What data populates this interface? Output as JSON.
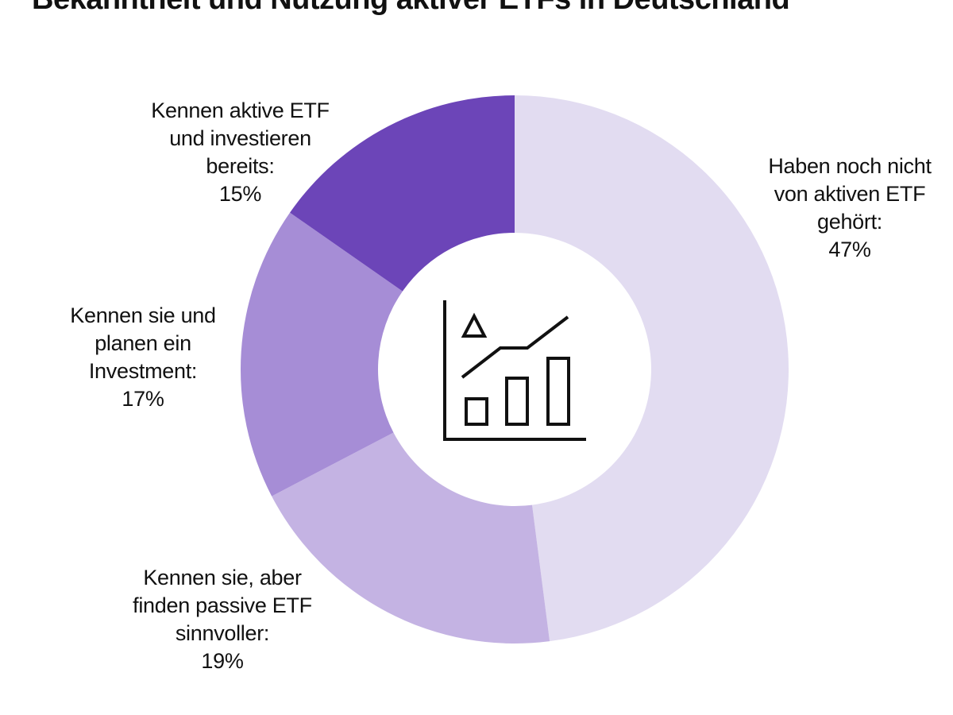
{
  "chart_data": {
    "type": "pie",
    "donut": true,
    "title": "Bekanntheit und Nutzung aktiver ETFs in Deutschland",
    "unit": "%",
    "slices": [
      {
        "label": "Haben noch nicht von aktiven ETF gehört:",
        "value": 47,
        "value_label": "47%",
        "color": "#e2dcf1"
      },
      {
        "label": "Kennen sie, aber finden passive ETF sinnvoller:",
        "value": 19,
        "value_label": "19%",
        "color": "#c4b3e3"
      },
      {
        "label": "Kennen sie und planen ein Investment:",
        "value": 17,
        "value_label": "17%",
        "color": "#a68dd6"
      },
      {
        "label": "Kennen aktive ETF und investieren bereits:",
        "value": 15,
        "value_label": "15%",
        "color": "#6c45b8"
      }
    ],
    "start": "top",
    "direction": "clockwise",
    "center_icon": "chart-growth-icon"
  }
}
